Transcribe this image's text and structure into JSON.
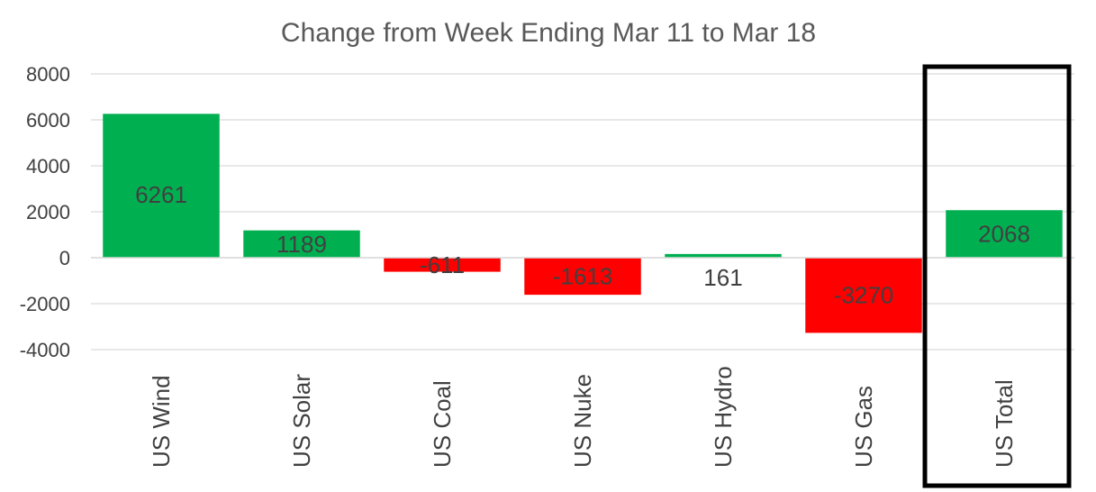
{
  "chart_data": {
    "type": "bar",
    "title": "Change from Week Ending Mar 11 to Mar 18",
    "xlabel": "",
    "ylabel": "",
    "categories": [
      "US Wind",
      "US Solar",
      "US Coal",
      "US Nuke",
      "US Hydro",
      "US Gas",
      "US Total"
    ],
    "values": [
      6261,
      1189,
      -611,
      -1613,
      161,
      -3270,
      2068
    ],
    "data_labels": [
      "6261",
      "1189",
      "-611",
      "-1613",
      "161",
      "-3270",
      "2068"
    ],
    "bar_colors": [
      "#00b050",
      "#00b050",
      "#ff0000",
      "#ff0000",
      "#00b050",
      "#ff0000",
      "#00b050"
    ],
    "ylim": [
      -4000,
      8000
    ],
    "yticks": [
      8000,
      6000,
      4000,
      2000,
      0,
      -2000,
      -4000
    ],
    "ytick_labels": [
      "8000",
      "6000",
      "4000",
      "2000",
      "0",
      "-2000",
      "-4000"
    ],
    "grid": true,
    "legend": "none",
    "highlight_category": "US Total",
    "highlight_color": "#000000"
  }
}
